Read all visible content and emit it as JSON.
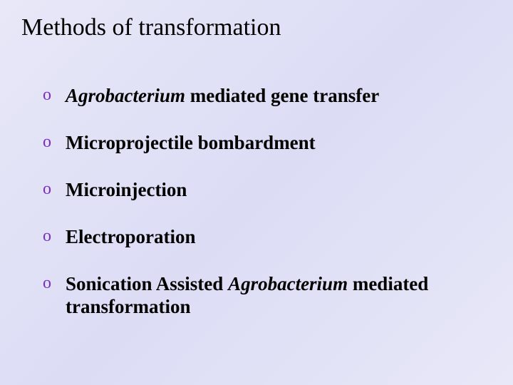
{
  "slide": {
    "title": "Methods of transformation",
    "bullet_glyph": "o",
    "bullet_color": "#7a2fbf",
    "background_gradient": [
      "#e8e8f8",
      "#dcdcf5",
      "#e8e8f8"
    ],
    "title_color": "#000000",
    "title_fontsize": 34,
    "text_color": "#000000",
    "text_fontsize": 27,
    "text_weight": "bold",
    "font_family": "Times New Roman",
    "items": [
      {
        "runs": [
          {
            "text": "Agrobacterium",
            "italic": true
          },
          {
            "text": " mediated gene transfer",
            "italic": false
          }
        ]
      },
      {
        "runs": [
          {
            "text": "Microprojectile bombardment",
            "italic": false
          }
        ]
      },
      {
        "runs": [
          {
            "text": "Microinjection",
            "italic": false
          }
        ]
      },
      {
        "runs": [
          {
            "text": "Electroporation",
            "italic": false
          }
        ]
      },
      {
        "runs": [
          {
            "text": "Sonication Assisted ",
            "italic": false
          },
          {
            "text": "Agrobacterium",
            "italic": true
          },
          {
            "text": " mediated transformation",
            "italic": false
          }
        ]
      }
    ]
  }
}
